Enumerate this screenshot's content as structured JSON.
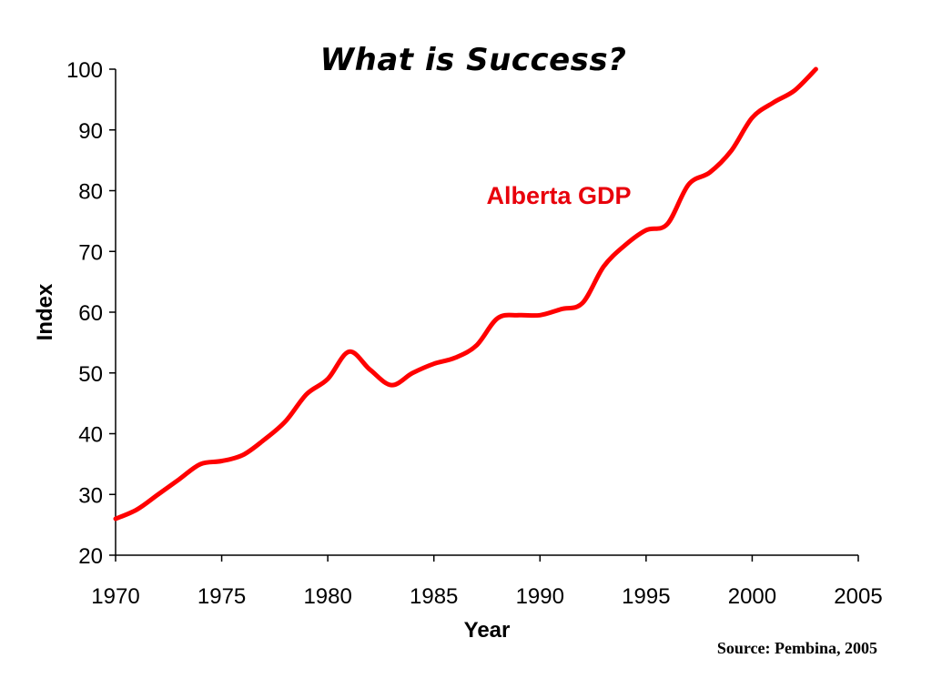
{
  "slide": {
    "title": "What is Success?",
    "source": "Source: Pembina, 2005"
  },
  "colors": {
    "series": "#ff0000",
    "label": "#e8000b",
    "axis": "#000000"
  },
  "chart_data": {
    "type": "line",
    "title": "What is Success?",
    "xlabel": "Year",
    "ylabel": "Index",
    "xlim": [
      1970,
      2005
    ],
    "ylim": [
      20,
      100
    ],
    "xticks": [
      1970,
      1975,
      1980,
      1985,
      1990,
      1995,
      2000,
      2005
    ],
    "yticks": [
      20,
      30,
      40,
      50,
      60,
      70,
      80,
      90,
      100
    ],
    "grid": false,
    "series": [
      {
        "name": "Alberta GDP",
        "x": [
          1970,
          1971,
          1972,
          1973,
          1974,
          1975,
          1976,
          1977,
          1978,
          1979,
          1980,
          1981,
          1982,
          1983,
          1984,
          1985,
          1986,
          1987,
          1988,
          1989,
          1990,
          1991,
          1992,
          1993,
          1994,
          1995,
          1996,
          1997,
          1998,
          1999,
          2000,
          2001,
          2002,
          2003
        ],
        "values": [
          26,
          27.5,
          30,
          32.5,
          35,
          35.5,
          36.5,
          39,
          42,
          46.5,
          49,
          53.5,
          50.5,
          48,
          50,
          51.5,
          52.5,
          54.5,
          59,
          59.5,
          59.5,
          60.5,
          61.5,
          67.5,
          71,
          73.5,
          74.5,
          81,
          83,
          86.5,
          92,
          94.5,
          96.5,
          100
        ]
      }
    ]
  }
}
